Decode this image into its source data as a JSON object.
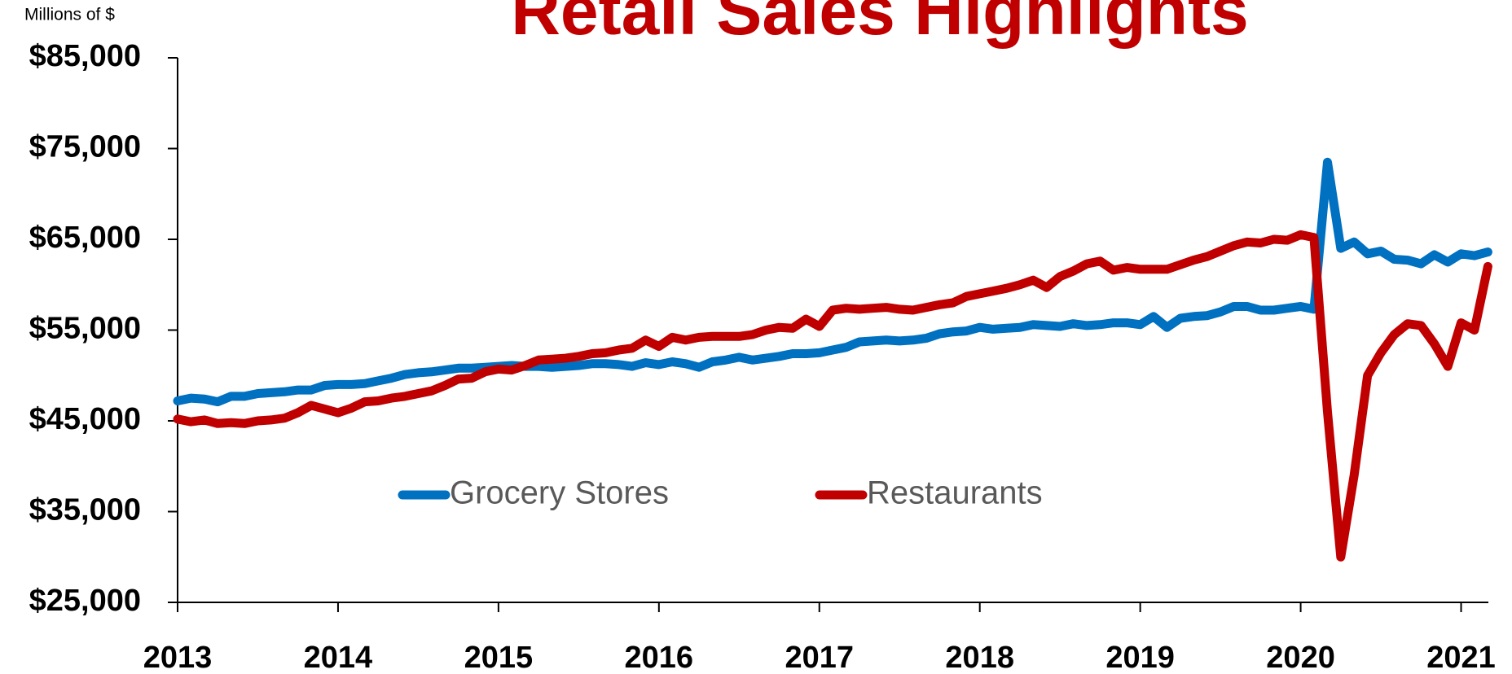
{
  "chart_data": {
    "type": "line",
    "title": "Retail Sales Highlights",
    "y_axis_label": "Millions of $",
    "x": [
      2013,
      2013.083,
      2013.167,
      2013.25,
      2013.333,
      2013.417,
      2013.5,
      2013.583,
      2013.667,
      2013.75,
      2013.833,
      2013.917,
      2014,
      2014.083,
      2014.167,
      2014.25,
      2014.333,
      2014.417,
      2014.5,
      2014.583,
      2014.667,
      2014.75,
      2014.833,
      2014.917,
      2015,
      2015.083,
      2015.167,
      2015.25,
      2015.333,
      2015.417,
      2015.5,
      2015.583,
      2015.667,
      2015.75,
      2015.833,
      2015.917,
      2016,
      2016.083,
      2016.167,
      2016.25,
      2016.333,
      2016.417,
      2016.5,
      2016.583,
      2016.667,
      2016.75,
      2016.833,
      2016.917,
      2017,
      2017.083,
      2017.167,
      2017.25,
      2017.333,
      2017.417,
      2017.5,
      2017.583,
      2017.667,
      2017.75,
      2017.833,
      2017.917,
      2018,
      2018.083,
      2018.167,
      2018.25,
      2018.333,
      2018.417,
      2018.5,
      2018.583,
      2018.667,
      2018.75,
      2018.833,
      2018.917,
      2019,
      2019.083,
      2019.167,
      2019.25,
      2019.333,
      2019.417,
      2019.5,
      2019.583,
      2019.667,
      2019.75,
      2019.833,
      2019.917,
      2020,
      2020.083,
      2020.167,
      2020.25,
      2020.333,
      2020.417,
      2020.5,
      2020.583,
      2020.667,
      2020.75,
      2020.833,
      2020.917,
      2021,
      2021.083,
      2021.167
    ],
    "series": [
      {
        "name": "Grocery Stores",
        "color": "#0070c0",
        "values": [
          47200,
          47500,
          47400,
          47100,
          47700,
          47700,
          48000,
          48100,
          48200,
          48400,
          48400,
          48900,
          49000,
          49000,
          49100,
          49400,
          49700,
          50100,
          50300,
          50400,
          50600,
          50800,
          50800,
          50900,
          51000,
          51100,
          51000,
          51000,
          50900,
          51000,
          51100,
          51300,
          51300,
          51200,
          51000,
          51400,
          51200,
          51500,
          51300,
          50900,
          51500,
          51700,
          52000,
          51700,
          51900,
          52100,
          52400,
          52400,
          52500,
          52800,
          53100,
          53700,
          53800,
          53900,
          53800,
          53900,
          54100,
          54600,
          54800,
          54900,
          55300,
          55100,
          55200,
          55300,
          55600,
          55500,
          55400,
          55700,
          55500,
          55600,
          55800,
          55800,
          55600,
          56500,
          55300,
          56300,
          56500,
          56600,
          57000,
          57600,
          57600,
          57200,
          57200,
          57400,
          57600,
          57300,
          73500,
          64000,
          64700,
          63400,
          63700,
          62800,
          62700,
          62300,
          63300,
          62500,
          63400,
          63200,
          63600
        ]
      },
      {
        "name": "Restaurants",
        "color": "#c00000",
        "values": [
          45200,
          44900,
          45100,
          44700,
          44800,
          44700,
          45000,
          45100,
          45300,
          45900,
          46700,
          46300,
          45900,
          46400,
          47100,
          47200,
          47500,
          47700,
          48000,
          48300,
          48900,
          49600,
          49700,
          50400,
          50700,
          50600,
          51100,
          51700,
          51800,
          51900,
          52100,
          52400,
          52500,
          52800,
          53000,
          53900,
          53200,
          54200,
          53900,
          54200,
          54300,
          54300,
          54300,
          54500,
          55000,
          55300,
          55200,
          56200,
          55400,
          57200,
          57400,
          57300,
          57400,
          57500,
          57300,
          57200,
          57500,
          57800,
          58000,
          58700,
          59000,
          59300,
          59600,
          60000,
          60500,
          59700,
          60900,
          61500,
          62300,
          62600,
          61600,
          61900,
          61700,
          61700,
          61700,
          62200,
          62700,
          63100,
          63700,
          64300,
          64700,
          64600,
          65000,
          64900,
          65500,
          65200,
          46000,
          30000,
          39000,
          50000,
          52500,
          54500,
          55700,
          55500,
          53500,
          51000,
          55800,
          55000,
          62000
        ]
      }
    ],
    "xlim": [
      2013,
      2021.17
    ],
    "xticks": [
      2013,
      2014,
      2015,
      2016,
      2017,
      2018,
      2019,
      2020,
      2021
    ],
    "ylim": [
      25000,
      85000
    ],
    "yticks": [
      {
        "value": 25000,
        "label": "$25,000"
      },
      {
        "value": 35000,
        "label": "$35,000"
      },
      {
        "value": 45000,
        "label": "$45,000"
      },
      {
        "value": 55000,
        "label": "$55,000"
      },
      {
        "value": 65000,
        "label": "$65,000"
      },
      {
        "value": 75000,
        "label": "$75,000"
      },
      {
        "value": 85000,
        "label": "$85,000"
      }
    ],
    "grid": false
  }
}
